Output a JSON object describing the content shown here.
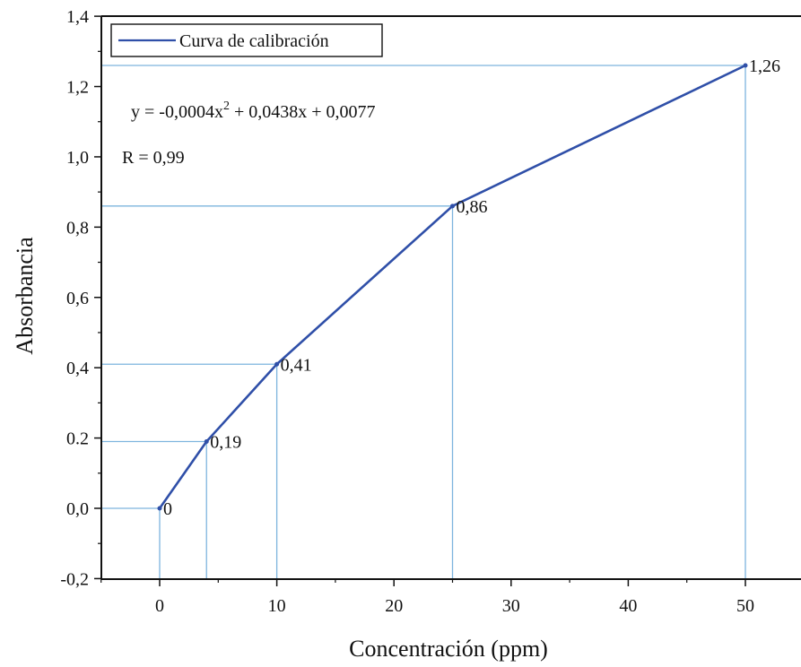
{
  "chart_data": {
    "type": "line",
    "xlabel": "Concentración (ppm)",
    "ylabel": "Absorbancia",
    "xlim": [
      -5,
      53
    ],
    "ylim": [
      -0.2,
      1.4
    ],
    "x_ticks": [
      0,
      10,
      20,
      30,
      40,
      50
    ],
    "x_tick_labels": [
      "0",
      "10",
      "20",
      "30",
      "40",
      "50"
    ],
    "y_ticks": [
      -0.2,
      0.0,
      0.2,
      0.4,
      0.6,
      0.8,
      1.0,
      1.2,
      1.4
    ],
    "y_tick_labels": [
      "-0,2",
      "0,0",
      "0.2",
      "0,4",
      "0,6",
      "0,8",
      "1,0",
      "1,2",
      "1,4"
    ],
    "grid": false,
    "legend_position": "top-left",
    "series": [
      {
        "name": "Curva de calibración",
        "color": "#2f4fa8",
        "x": [
          0,
          4,
          10,
          25,
          50
        ],
        "y": [
          0,
          0.19,
          0.41,
          0.86,
          1.26
        ],
        "point_labels": [
          "0",
          "0,19",
          "0,41",
          "0,86",
          "1,26"
        ]
      }
    ],
    "guide_line_color": "#7db4de",
    "annotations": {
      "equation_main": "y = -0,0004x",
      "equation_sup": "2",
      "equation_rest": " + 0,0438x + 0,0077",
      "r_value": "R = 0,99"
    }
  }
}
